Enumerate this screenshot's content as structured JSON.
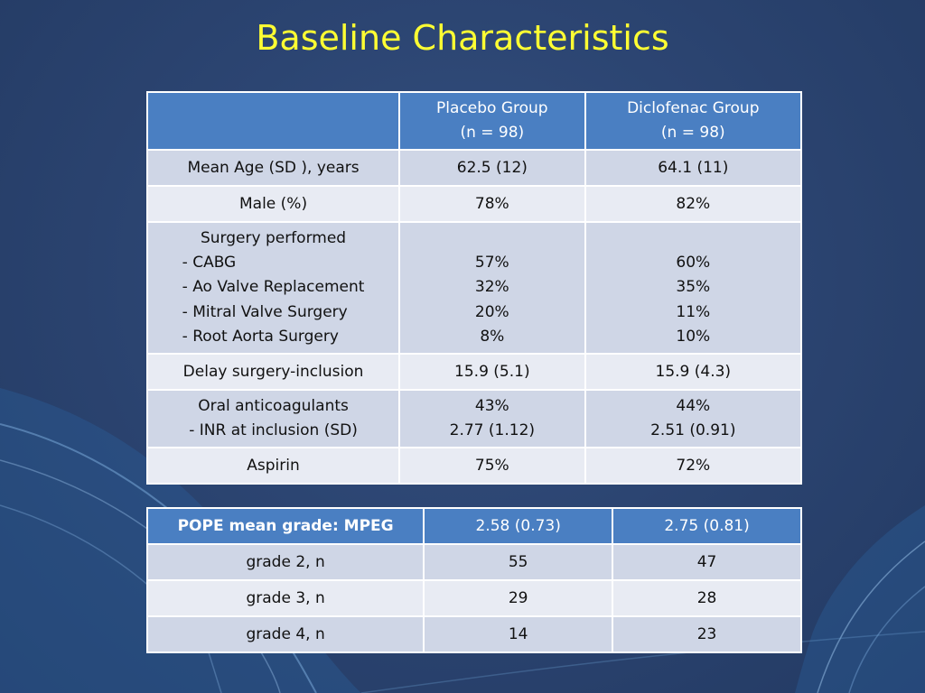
{
  "title": "Baseline Characteristics",
  "table1": {
    "header": {
      "col1": "",
      "placebo_line1": "Placebo Group",
      "placebo_line2": "(n = 98)",
      "diclofenac_line1": "Diclofenac Group",
      "diclofenac_line2": "(n = 98)"
    },
    "age": {
      "label": "Mean Age (SD ), years",
      "placebo": "62.5 (12)",
      "diclofenac": "64.1 (11)"
    },
    "male": {
      "label": "Male (%)",
      "placebo": "78%",
      "diclofenac": "82%"
    },
    "surgery": {
      "label": "Surgery performed",
      "items": [
        "- CABG",
        "- Ao Valve Replacement",
        "- Mitral Valve Surgery",
        "- Root Aorta Surgery"
      ],
      "placebo": [
        "57%",
        "32%",
        "20%",
        "8%"
      ],
      "diclofenac": [
        "60%",
        "35%",
        "11%",
        "10%"
      ]
    },
    "delay": {
      "label": "Delay surgery-inclusion",
      "placebo": "15.9 (5.1)",
      "diclofenac": "15.9 (4.3)"
    },
    "oral": {
      "label1": "Oral anticoagulants",
      "label2": "- INR at inclusion (SD)",
      "placebo1": "43%",
      "placebo2": "2.77 (1.12)",
      "diclofenac1": "44%",
      "diclofenac2": "2.51 (0.91)"
    },
    "aspirin": {
      "label": "Aspirin",
      "placebo": "75%",
      "diclofenac": "72%"
    }
  },
  "table2": {
    "header": {
      "label": "POPE  mean grade: MPEG",
      "placebo": "2.58 (0.73)",
      "diclofenac": "2.75 (0.81)"
    },
    "rows": [
      {
        "label": "grade 2, n",
        "placebo": "55",
        "diclofenac": "47"
      },
      {
        "label": "grade 3, n",
        "placebo": "29",
        "diclofenac": "28"
      },
      {
        "label": "grade 4, n",
        "placebo": "14",
        "diclofenac": "23"
      }
    ]
  },
  "colors": {
    "title": "#ffff33",
    "header": "#4a7fc2",
    "row_dark": "#cfd6e6",
    "row_light": "#e8ebf3"
  }
}
